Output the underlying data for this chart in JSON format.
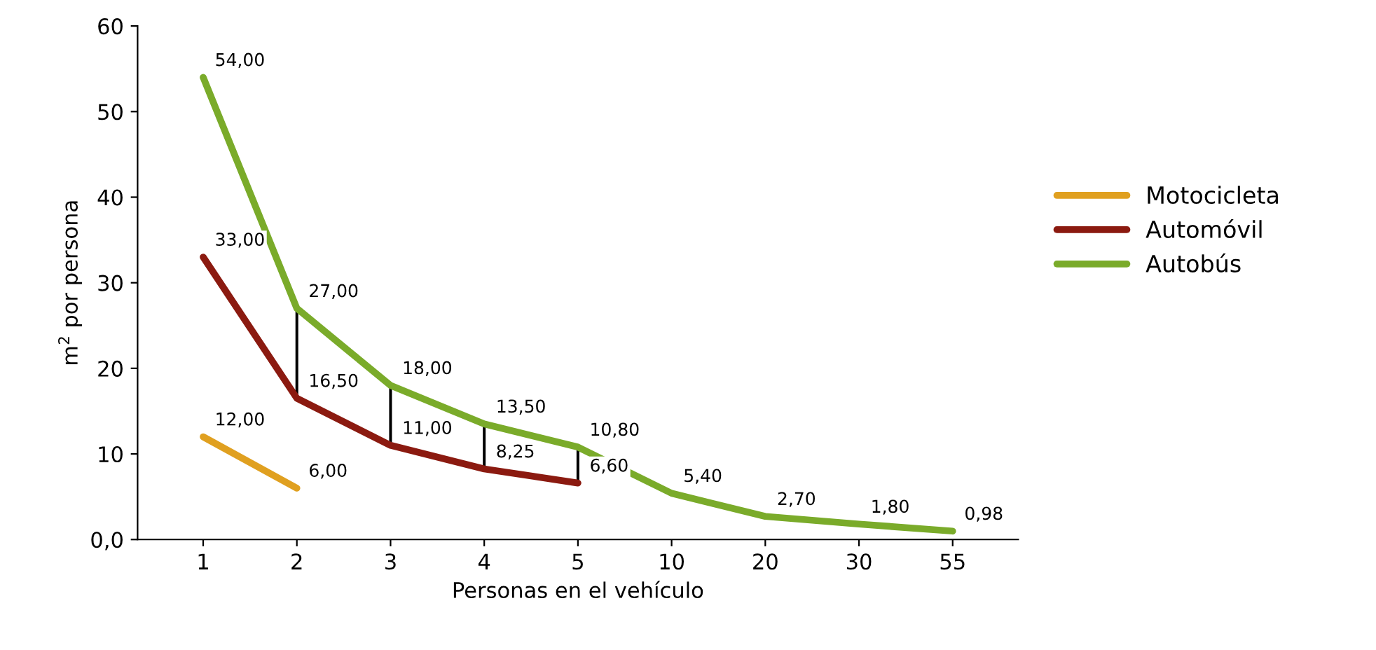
{
  "chart_data": {
    "type": "line",
    "xlabel": "Personas en el vehículo",
    "ylabel": "m$^{2}$ por persona",
    "categories": [
      "1",
      "2",
      "3",
      "4",
      "5",
      "10",
      "20",
      "30",
      "55"
    ],
    "ylim": [
      0,
      60
    ],
    "yticks": [
      {
        "value": 0,
        "label": "0,0"
      },
      10,
      20,
      30,
      40,
      50,
      60
    ],
    "grid": false,
    "legend": "right",
    "marker": "none",
    "line_style": "solid",
    "series": [
      {
        "name": "Motocicleta",
        "color": "#e0a020",
        "values": [
          12,
          6,
          null,
          null,
          null,
          null,
          null,
          null,
          null
        ],
        "value_labels": [
          "12,00",
          "6,00",
          null,
          null,
          null,
          null,
          null,
          null,
          null
        ]
      },
      {
        "name": "Automóvil",
        "color": "#8b1a10",
        "values": [
          33,
          16.5,
          11,
          8.25,
          6.6,
          null,
          null,
          null,
          null
        ],
        "value_labels": [
          "33,00",
          "16,50",
          "11,00",
          "8,25",
          "6,60",
          null,
          null,
          null,
          null
        ]
      },
      {
        "name": "Autobús",
        "color": "#7aab2a",
        "values": [
          54,
          27,
          18,
          13.5,
          10.8,
          5.4,
          2.7,
          1.8,
          0.98
        ],
        "value_labels": [
          "54,00",
          "27,00",
          "18,00",
          "13,50",
          "10,80",
          "5,40",
          "2,70",
          "1,80",
          "0,98"
        ]
      },
      {
        "type": "bar",
        "color": "#000000",
        "base": [
          null,
          16.5,
          11,
          8.25,
          6.6,
          null,
          null,
          null,
          null
        ],
        "values": [
          null,
          10.5,
          7,
          5.25,
          4.2,
          null,
          null,
          null,
          null
        ]
      }
    ]
  }
}
